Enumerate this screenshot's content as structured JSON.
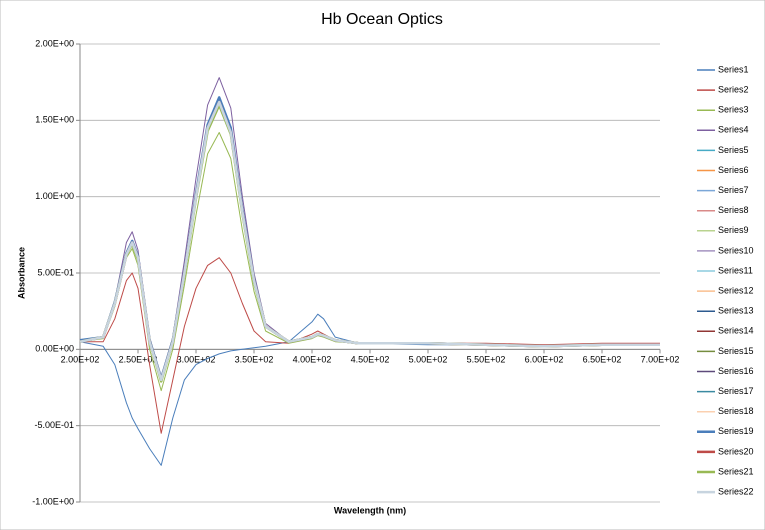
{
  "chart_data": {
    "type": "line",
    "title": "Hb Ocean Optics",
    "x_label": "Wavelength (nm)",
    "y_label": "Absorbance",
    "x": [
      200,
      220,
      230,
      240,
      245,
      250,
      260,
      270,
      280,
      290,
      300,
      310,
      320,
      330,
      340,
      350,
      360,
      380,
      400,
      405,
      410,
      420,
      440,
      500,
      550,
      600,
      650,
      700
    ],
    "xlim": [
      200,
      700
    ],
    "xticks": [
      {
        "value": 200,
        "label": "2.00E+02"
      },
      {
        "value": 250,
        "label": "2.50E+02"
      },
      {
        "value": 300,
        "label": "3.00E+02"
      },
      {
        "value": 350,
        "label": "3.50E+02"
      },
      {
        "value": 400,
        "label": "4.00E+02"
      },
      {
        "value": 450,
        "label": "4.50E+02"
      },
      {
        "value": 500,
        "label": "5.00E+02"
      },
      {
        "value": 550,
        "label": "5.50E+02"
      },
      {
        "value": 600,
        "label": "6.00E+02"
      },
      {
        "value": 650,
        "label": "6.50E+02"
      },
      {
        "value": 700,
        "label": "7.00E+02"
      }
    ],
    "ylim": [
      -1,
      2
    ],
    "yticks": [
      {
        "value": -1,
        "label": "-1.00E+00"
      },
      {
        "value": -0.5,
        "label": "-5.00E-01"
      },
      {
        "value": 0,
        "label": "0.00E+00"
      },
      {
        "value": 0.5,
        "label": "5.00E-01"
      },
      {
        "value": 1,
        "label": "1.00E+00"
      },
      {
        "value": 1.5,
        "label": "1.50E+00"
      },
      {
        "value": 2,
        "label": "2.00E+00"
      }
    ],
    "grid": true,
    "legend": "right",
    "series": [
      {
        "name": "Series1",
        "color": "#4a7ebb",
        "values": [
          0.05,
          0.02,
          -0.1,
          -0.35,
          -0.45,
          -0.52,
          -0.65,
          -0.76,
          -0.45,
          -0.2,
          -0.1,
          -0.06,
          -0.03,
          -0.01,
          0.0,
          0.01,
          0.02,
          0.05,
          0.18,
          0.23,
          0.2,
          0.08,
          0.04,
          0.03,
          0.03,
          0.02,
          0.03,
          0.03
        ]
      },
      {
        "name": "Series2",
        "color": "#be4b48",
        "values": [
          0.05,
          0.05,
          0.2,
          0.45,
          0.5,
          0.4,
          -0.1,
          -0.55,
          -0.2,
          0.15,
          0.4,
          0.55,
          0.6,
          0.5,
          0.3,
          0.12,
          0.05,
          0.04,
          0.1,
          0.12,
          0.1,
          0.06,
          0.04,
          0.04,
          0.04,
          0.03,
          0.04,
          0.04
        ]
      },
      {
        "name": "Series3",
        "color": "#98b954",
        "values": [
          0.05,
          0.07,
          0.28,
          0.6,
          0.66,
          0.55,
          0.0,
          -0.27,
          0.0,
          0.42,
          0.88,
          1.28,
          1.42,
          1.25,
          0.78,
          0.38,
          0.12,
          0.04,
          0.07,
          0.09,
          0.08,
          0.05,
          0.04,
          0.04,
          0.03,
          0.02,
          0.03,
          0.03
        ]
      },
      {
        "name": "Series4",
        "color": "#7d60a0",
        "values": [
          0.05,
          0.08,
          0.32,
          0.7,
          0.77,
          0.65,
          0.08,
          -0.18,
          0.08,
          0.58,
          1.12,
          1.6,
          1.78,
          1.58,
          1.0,
          0.5,
          0.17,
          0.05,
          0.08,
          0.1,
          0.09,
          0.06,
          0.04,
          0.04,
          0.03,
          0.02,
          0.03,
          0.03
        ]
      },
      {
        "name": "Series5",
        "color": "#46aac5",
        "values": [
          0.05,
          0.08,
          0.3,
          0.62,
          0.7,
          0.6,
          0.05,
          -0.2,
          0.05,
          0.5,
          1.0,
          1.45,
          1.62,
          1.42,
          0.9,
          0.45,
          0.15,
          0.05,
          0.08,
          0.1,
          0.09,
          0.06,
          0.04,
          0.04,
          0.03,
          0.02,
          0.03,
          0.03
        ]
      },
      {
        "name": "Series6",
        "color": "#f69546",
        "values": [
          0.05,
          0.08,
          0.3,
          0.62,
          0.69,
          0.59,
          0.05,
          -0.21,
          0.05,
          0.49,
          0.99,
          1.43,
          1.6,
          1.41,
          0.89,
          0.44,
          0.15,
          0.05,
          0.08,
          0.1,
          0.09,
          0.06,
          0.04,
          0.04,
          0.03,
          0.02,
          0.03,
          0.03
        ]
      },
      {
        "name": "Series7",
        "color": "#7ba7d8",
        "values": [
          0.06,
          0.08,
          0.31,
          0.63,
          0.71,
          0.61,
          0.06,
          -0.19,
          0.06,
          0.51,
          1.02,
          1.47,
          1.65,
          1.45,
          0.92,
          0.46,
          0.15,
          0.05,
          0.08,
          0.1,
          0.09,
          0.06,
          0.04,
          0.04,
          0.03,
          0.02,
          0.03,
          0.03
        ]
      },
      {
        "name": "Series8",
        "color": "#d98a88",
        "values": [
          0.05,
          0.08,
          0.3,
          0.62,
          0.7,
          0.6,
          0.05,
          -0.2,
          0.05,
          0.5,
          1.0,
          1.45,
          1.62,
          1.42,
          0.9,
          0.45,
          0.15,
          0.05,
          0.08,
          0.1,
          0.09,
          0.06,
          0.04,
          0.04,
          0.03,
          0.02,
          0.03,
          0.03
        ]
      },
      {
        "name": "Series9",
        "color": "#b9d38f",
        "values": [
          0.05,
          0.08,
          0.3,
          0.62,
          0.69,
          0.59,
          0.05,
          -0.21,
          0.05,
          0.49,
          0.99,
          1.43,
          1.6,
          1.41,
          0.89,
          0.44,
          0.15,
          0.05,
          0.08,
          0.1,
          0.09,
          0.06,
          0.04,
          0.04,
          0.03,
          0.02,
          0.03,
          0.03
        ]
      },
      {
        "name": "Series10",
        "color": "#a593c0",
        "values": [
          0.06,
          0.08,
          0.31,
          0.63,
          0.71,
          0.61,
          0.06,
          -0.19,
          0.06,
          0.51,
          1.02,
          1.47,
          1.65,
          1.45,
          0.92,
          0.46,
          0.15,
          0.05,
          0.08,
          0.1,
          0.09,
          0.06,
          0.04,
          0.04,
          0.03,
          0.02,
          0.03,
          0.03
        ]
      },
      {
        "name": "Series11",
        "color": "#8ccbdd",
        "values": [
          0.05,
          0.08,
          0.3,
          0.62,
          0.7,
          0.6,
          0.05,
          -0.2,
          0.05,
          0.5,
          1.0,
          1.45,
          1.62,
          1.42,
          0.9,
          0.45,
          0.15,
          0.05,
          0.08,
          0.1,
          0.09,
          0.06,
          0.04,
          0.04,
          0.03,
          0.02,
          0.03,
          0.03
        ]
      },
      {
        "name": "Series12",
        "color": "#f9bf8f",
        "values": [
          0.05,
          0.08,
          0.3,
          0.62,
          0.69,
          0.59,
          0.05,
          -0.21,
          0.05,
          0.49,
          0.99,
          1.43,
          1.6,
          1.41,
          0.89,
          0.44,
          0.15,
          0.05,
          0.08,
          0.1,
          0.09,
          0.06,
          0.04,
          0.04,
          0.03,
          0.02,
          0.03,
          0.03
        ]
      },
      {
        "name": "Series13",
        "color": "#2c5a8f",
        "values": [
          0.06,
          0.08,
          0.31,
          0.63,
          0.71,
          0.61,
          0.06,
          -0.19,
          0.06,
          0.51,
          1.02,
          1.47,
          1.65,
          1.45,
          0.92,
          0.46,
          0.15,
          0.05,
          0.08,
          0.1,
          0.09,
          0.06,
          0.04,
          0.04,
          0.03,
          0.02,
          0.03,
          0.03
        ]
      },
      {
        "name": "Series14",
        "color": "#913634",
        "values": [
          0.05,
          0.08,
          0.3,
          0.62,
          0.7,
          0.6,
          0.05,
          -0.2,
          0.05,
          0.5,
          1.0,
          1.45,
          1.62,
          1.42,
          0.9,
          0.45,
          0.15,
          0.05,
          0.08,
          0.1,
          0.09,
          0.06,
          0.04,
          0.04,
          0.03,
          0.02,
          0.03,
          0.03
        ]
      },
      {
        "name": "Series15",
        "color": "#758d3f",
        "values": [
          0.05,
          0.08,
          0.3,
          0.62,
          0.69,
          0.59,
          0.05,
          -0.21,
          0.05,
          0.49,
          0.99,
          1.43,
          1.6,
          1.41,
          0.89,
          0.44,
          0.15,
          0.05,
          0.08,
          0.1,
          0.09,
          0.06,
          0.04,
          0.04,
          0.03,
          0.02,
          0.03,
          0.03
        ]
      },
      {
        "name": "Series16",
        "color": "#5e4a7b",
        "values": [
          0.06,
          0.08,
          0.31,
          0.63,
          0.71,
          0.61,
          0.06,
          -0.19,
          0.06,
          0.51,
          1.02,
          1.47,
          1.65,
          1.45,
          0.92,
          0.46,
          0.15,
          0.05,
          0.08,
          0.1,
          0.09,
          0.06,
          0.04,
          0.04,
          0.03,
          0.02,
          0.03,
          0.03
        ]
      },
      {
        "name": "Series17",
        "color": "#3a8aa1",
        "values": [
          0.05,
          0.08,
          0.3,
          0.62,
          0.7,
          0.6,
          0.05,
          -0.2,
          0.05,
          0.5,
          1.0,
          1.45,
          1.62,
          1.42,
          0.9,
          0.45,
          0.15,
          0.05,
          0.08,
          0.1,
          0.09,
          0.06,
          0.04,
          0.04,
          0.03,
          0.02,
          0.03,
          0.03
        ]
      },
      {
        "name": "Series18",
        "color": "#fbd0b0",
        "values": [
          0.05,
          0.08,
          0.3,
          0.62,
          0.69,
          0.59,
          0.05,
          -0.21,
          0.05,
          0.49,
          0.99,
          1.43,
          1.6,
          1.41,
          0.89,
          0.44,
          0.15,
          0.05,
          0.08,
          0.1,
          0.09,
          0.06,
          0.04,
          0.04,
          0.03,
          0.02,
          0.03,
          0.03
        ]
      },
      {
        "name": "Series19",
        "color": "#4a7ebb",
        "values": [
          0.06,
          0.08,
          0.31,
          0.63,
          0.71,
          0.61,
          0.06,
          -0.19,
          0.06,
          0.51,
          1.02,
          1.47,
          1.65,
          1.45,
          0.92,
          0.46,
          0.15,
          0.05,
          0.08,
          0.1,
          0.09,
          0.06,
          0.04,
          0.04,
          0.03,
          0.02,
          0.03,
          0.03
        ]
      },
      {
        "name": "Series20",
        "color": "#be4b48",
        "values": [
          0.05,
          0.08,
          0.3,
          0.62,
          0.7,
          0.6,
          0.05,
          -0.2,
          0.05,
          0.5,
          1.0,
          1.45,
          1.62,
          1.42,
          0.9,
          0.45,
          0.15,
          0.05,
          0.08,
          0.1,
          0.09,
          0.06,
          0.04,
          0.04,
          0.03,
          0.02,
          0.03,
          0.03
        ]
      },
      {
        "name": "Series21",
        "color": "#98b954",
        "values": [
          0.05,
          0.08,
          0.3,
          0.62,
          0.69,
          0.59,
          0.05,
          -0.21,
          0.05,
          0.49,
          0.99,
          1.43,
          1.6,
          1.41,
          0.89,
          0.44,
          0.15,
          0.05,
          0.08,
          0.1,
          0.09,
          0.06,
          0.04,
          0.04,
          0.03,
          0.02,
          0.03,
          0.03
        ]
      },
      {
        "name": "Series22",
        "color": "#c7d4df",
        "values": [
          0.05,
          0.08,
          0.3,
          0.62,
          0.7,
          0.6,
          0.05,
          -0.2,
          0.05,
          0.5,
          1.0,
          1.45,
          1.62,
          1.42,
          0.9,
          0.45,
          0.15,
          0.05,
          0.08,
          0.1,
          0.09,
          0.06,
          0.04,
          0.04,
          0.03,
          0.02,
          0.03,
          0.03
        ]
      }
    ]
  }
}
